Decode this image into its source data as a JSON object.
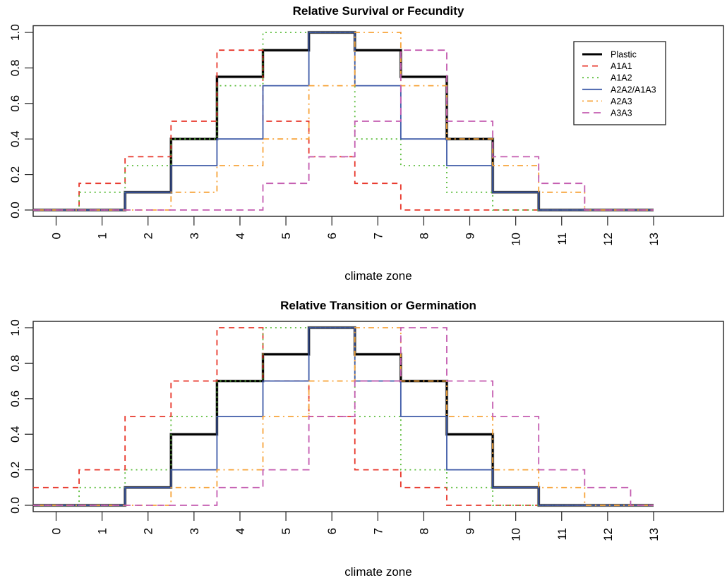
{
  "chart_data": [
    {
      "type": "line",
      "step": "mid",
      "title": "Relative Survival or Fecundity",
      "xlabel": "climate zone",
      "ylabel": "",
      "x": [
        0,
        1,
        2,
        3,
        4,
        5,
        6,
        7,
        8,
        9,
        10,
        11,
        12,
        13
      ],
      "x_tick_labels": [
        "0",
        "1",
        "2",
        "3",
        "4",
        "5",
        "6",
        "7",
        "8",
        "9",
        "10",
        "11",
        "12",
        "13"
      ],
      "y_tick_labels": [
        "0.0",
        "0.2",
        "0.4",
        "0.6",
        "0.8",
        "1.0"
      ],
      "y_ticks": [
        0,
        0.2,
        0.4,
        0.6,
        0.8,
        1.0
      ],
      "xlim": [
        -1.1,
        14.8
      ],
      "ylim": [
        -0.04,
        1.04
      ],
      "grid": false,
      "legend_position": "top-right",
      "series": [
        {
          "name": "Plastic",
          "color": "#000000",
          "dash": "solid-thick",
          "values": [
            0,
            0,
            0.1,
            0.4,
            0.75,
            0.9,
            1.0,
            0.9,
            0.75,
            0.4,
            0.1,
            0,
            0,
            0
          ]
        },
        {
          "name": "A1A1",
          "color": "#e8372b",
          "dash": "dashed",
          "values": [
            0,
            0.15,
            0.3,
            0.5,
            0.9,
            0.5,
            0.3,
            0.15,
            0,
            0,
            0,
            0,
            0,
            0
          ]
        },
        {
          "name": "A1A2",
          "color": "#5cbd3c",
          "dash": "dotted",
          "values": [
            0,
            0.1,
            0.25,
            0.4,
            0.7,
            1.0,
            1.0,
            0.4,
            0.25,
            0.1,
            0,
            0,
            0,
            0
          ]
        },
        {
          "name": "A2A2/A1A3",
          "color": "#3f5ba8",
          "dash": "solid",
          "values": [
            0,
            0,
            0.1,
            0.25,
            0.4,
            0.7,
            1.0,
            0.7,
            0.4,
            0.25,
            0.1,
            0,
            0,
            0
          ]
        },
        {
          "name": "A2A3",
          "color": "#f7a43a",
          "dash": "dotdash",
          "values": [
            0,
            0,
            0,
            0.1,
            0.25,
            0.4,
            0.7,
            1.0,
            0.7,
            0.4,
            0.25,
            0.1,
            0,
            0
          ]
        },
        {
          "name": "A3A3",
          "color": "#c45cb0",
          "dash": "longdash",
          "values": [
            0,
            0,
            0,
            0,
            0,
            0.15,
            0.3,
            0.5,
            0.9,
            0.5,
            0.3,
            0.15,
            0,
            0
          ]
        }
      ]
    },
    {
      "type": "line",
      "step": "mid",
      "title": "Relative Transition or Germination",
      "xlabel": "climate zone",
      "ylabel": "",
      "x": [
        0,
        1,
        2,
        3,
        4,
        5,
        6,
        7,
        8,
        9,
        10,
        11,
        12,
        13
      ],
      "x_tick_labels": [
        "0",
        "1",
        "2",
        "3",
        "4",
        "5",
        "6",
        "7",
        "8",
        "9",
        "10",
        "11",
        "12",
        "13"
      ],
      "y_tick_labels": [
        "0.0",
        "0.2",
        "0.4",
        "0.6",
        "0.8",
        "1.0"
      ],
      "y_ticks": [
        0,
        0.2,
        0.4,
        0.6,
        0.8,
        1.0
      ],
      "xlim": [
        -1.1,
        14.8
      ],
      "ylim": [
        -0.04,
        1.04
      ],
      "grid": false,
      "legend_position": "none",
      "series": [
        {
          "name": "Plastic",
          "color": "#000000",
          "dash": "solid-thick",
          "values": [
            0,
            0,
            0.1,
            0.4,
            0.7,
            0.85,
            1.0,
            0.85,
            0.7,
            0.4,
            0.1,
            0,
            0,
            0
          ]
        },
        {
          "name": "A1A1",
          "color": "#e8372b",
          "dash": "dashed",
          "values": [
            0.1,
            0.2,
            0.5,
            0.7,
            1.0,
            0.7,
            0.5,
            0.2,
            0.1,
            0,
            0,
            0,
            0,
            0
          ]
        },
        {
          "name": "A1A2",
          "color": "#5cbd3c",
          "dash": "dotted",
          "values": [
            0,
            0.1,
            0.2,
            0.5,
            0.7,
            1.0,
            1.0,
            0.5,
            0.2,
            0.1,
            0,
            0,
            0,
            0
          ]
        },
        {
          "name": "A2A2/A1A3",
          "color": "#3f5ba8",
          "dash": "solid",
          "values": [
            0,
            0,
            0.1,
            0.2,
            0.5,
            0.7,
            1.0,
            0.7,
            0.5,
            0.2,
            0.1,
            0,
            0,
            0
          ]
        },
        {
          "name": "A2A3",
          "color": "#f7a43a",
          "dash": "dotdash",
          "values": [
            0,
            0,
            0,
            0.1,
            0.2,
            0.5,
            0.7,
            1.0,
            0.7,
            0.5,
            0.2,
            0.1,
            0,
            0
          ]
        },
        {
          "name": "A3A3",
          "color": "#c45cb0",
          "dash": "longdash",
          "values": [
            0,
            0,
            0,
            0,
            0.1,
            0.2,
            0.5,
            0.7,
            1.0,
            0.7,
            0.5,
            0.2,
            0.1,
            0
          ]
        }
      ]
    }
  ]
}
